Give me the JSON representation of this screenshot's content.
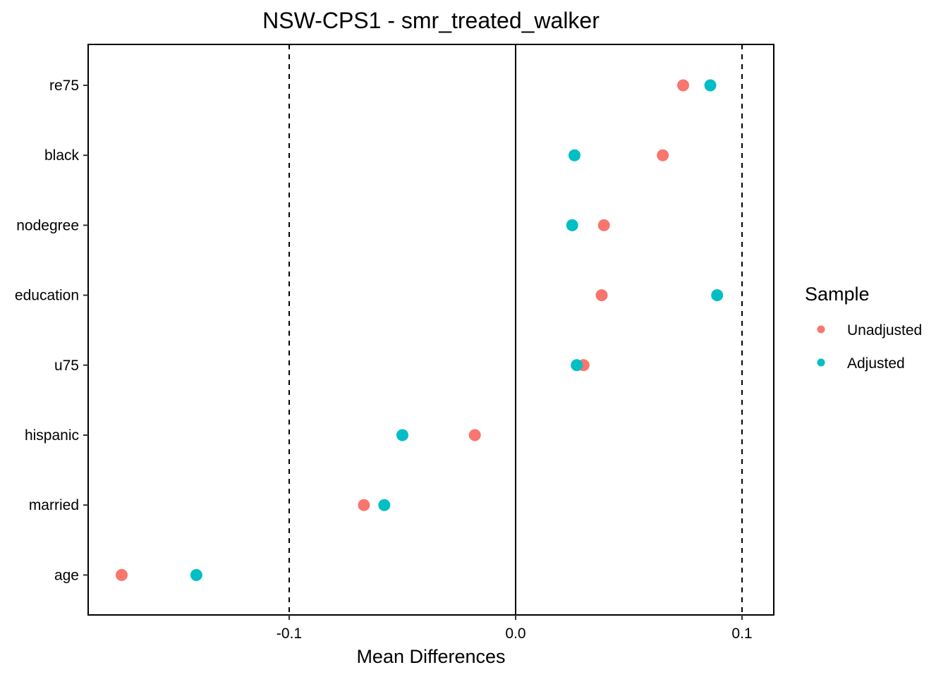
{
  "chart_data": {
    "type": "scatter",
    "title": "NSW-CPS1 - smr_treated_walker",
    "xlabel": "Mean Differences",
    "ylabel": "",
    "xlim": [
      -0.188,
      0.114
    ],
    "xticks": [
      -0.1,
      0.0,
      0.1
    ],
    "xtick_labels": [
      "-0.1",
      "0.0",
      "0.1"
    ],
    "reference_lines": {
      "solid": [
        0.0
      ],
      "dashed": [
        -0.1,
        0.1
      ]
    },
    "categories": [
      "re75",
      "black",
      "nodegree",
      "education",
      "u75",
      "hispanic",
      "married",
      "age"
    ],
    "series": [
      {
        "name": "Unadjusted",
        "color": "#F8766D",
        "values": [
          0.074,
          0.065,
          0.039,
          0.038,
          0.03,
          -0.018,
          -0.067,
          -0.174
        ]
      },
      {
        "name": "Adjusted",
        "color": "#00BFC4",
        "values": [
          0.086,
          0.026,
          0.025,
          0.089,
          0.027,
          -0.05,
          -0.058,
          -0.141
        ]
      }
    ],
    "legend": {
      "title": "Sample",
      "position": "right"
    },
    "grid": false
  }
}
